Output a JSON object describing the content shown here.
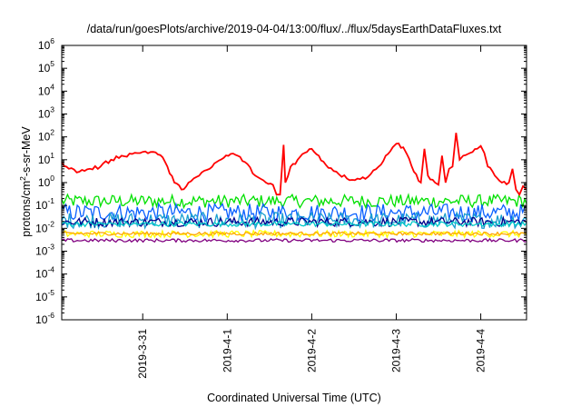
{
  "chart_data": {
    "type": "line",
    "title": "/data/run/goesPlots/archive/2019-04-04/13:00/flux/../flux/5daysEarthDataFluxes.txt",
    "xlabel": "Coordinated Universal Time (UTC)",
    "ylabel": {
      "base": "protons/cm",
      "sup": "2",
      "rest": "-s-sr-MeV"
    },
    "x_scale": "date",
    "y_scale": "log",
    "xlim": [
      "2019-03-30T01:00",
      "2019-04-04T13:00"
    ],
    "ylim": [
      1e-06,
      1000000.0
    ],
    "x_ticks": [
      "2019-3-31",
      "2019-4-1",
      "2019-4-2",
      "2019-4-3",
      "2019-4-4"
    ],
    "y_ticks": [
      {
        "base": "10",
        "exp": "-6"
      },
      {
        "base": "10",
        "exp": "-5"
      },
      {
        "base": "10",
        "exp": "-4"
      },
      {
        "base": "10",
        "exp": "-3"
      },
      {
        "base": "10",
        "exp": "-2"
      },
      {
        "base": "10",
        "exp": "-1"
      },
      {
        "base": "10",
        "exp": "0"
      },
      {
        "base": "10",
        "exp": "1"
      },
      {
        "base": "10",
        "exp": "2"
      },
      {
        "base": "10",
        "exp": "3"
      },
      {
        "base": "10",
        "exp": "4"
      },
      {
        "base": "10",
        "exp": "5"
      },
      {
        "base": "10",
        "exp": "6"
      }
    ],
    "grid": false,
    "legend": "none",
    "series": [
      {
        "color": "#ff0000",
        "points": [
          [
            "2019-03-30T01:00",
            8
          ],
          [
            "2019-03-30T03:00",
            4
          ],
          [
            "2019-03-30T06:00",
            3
          ],
          [
            "2019-03-30T09:00",
            4
          ],
          [
            "2019-03-30T12:00",
            5
          ],
          [
            "2019-03-30T15:00",
            10
          ],
          [
            "2019-03-30T18:00",
            15
          ],
          [
            "2019-03-30T21:00",
            18
          ],
          [
            "2019-03-31T00:00",
            22
          ],
          [
            "2019-03-31T03:00",
            22
          ],
          [
            "2019-03-31T05:00",
            16
          ],
          [
            "2019-03-31T07:00",
            5
          ],
          [
            "2019-03-31T09:00",
            1
          ],
          [
            "2019-03-31T11:00",
            0.5
          ],
          [
            "2019-03-31T13:00",
            1
          ],
          [
            "2019-03-31T16:00",
            2
          ],
          [
            "2019-03-31T19:00",
            4
          ],
          [
            "2019-03-31T21:00",
            8
          ],
          [
            "2019-03-31T23:00",
            12
          ],
          [
            "2019-04-01T01:00",
            18
          ],
          [
            "2019-04-01T03:00",
            15
          ],
          [
            "2019-04-01T05:00",
            8
          ],
          [
            "2019-04-01T08:00",
            2
          ],
          [
            "2019-04-01T11:00",
            1
          ],
          [
            "2019-04-01T13:00",
            0.8
          ],
          [
            "2019-04-01T14:00",
            0.3
          ],
          [
            "2019-04-01T15:00",
            0.3
          ],
          [
            "2019-04-01T16:00",
            45
          ],
          [
            "2019-04-01T16:30",
            1
          ],
          [
            "2019-04-01T18:00",
            5
          ],
          [
            "2019-04-01T20:00",
            10
          ],
          [
            "2019-04-01T22:00",
            20
          ],
          [
            "2019-04-02T00:00",
            30
          ],
          [
            "2019-04-02T02:00",
            15
          ],
          [
            "2019-04-02T04:00",
            6
          ],
          [
            "2019-04-02T07:00",
            3
          ],
          [
            "2019-04-02T10:00",
            1.5
          ],
          [
            "2019-04-02T13:00",
            1.5
          ],
          [
            "2019-04-02T16:00",
            1.8
          ],
          [
            "2019-04-02T19:00",
            5
          ],
          [
            "2019-04-02T21:00",
            15
          ],
          [
            "2019-04-02T23:00",
            35
          ],
          [
            "2019-04-03T00:00",
            50
          ],
          [
            "2019-04-03T02:00",
            35
          ],
          [
            "2019-04-03T03:00",
            18
          ],
          [
            "2019-04-03T05:00",
            3
          ],
          [
            "2019-04-03T07:00",
            1
          ],
          [
            "2019-04-03T08:00",
            30
          ],
          [
            "2019-04-03T09:00",
            2
          ],
          [
            "2019-04-03T11:00",
            1
          ],
          [
            "2019-04-03T12:00",
            0.8
          ],
          [
            "2019-04-03T13:00",
            15
          ],
          [
            "2019-04-03T14:00",
            1
          ],
          [
            "2019-04-03T15:00",
            4
          ],
          [
            "2019-04-03T16:00",
            5
          ],
          [
            "2019-04-03T17:00",
            150
          ],
          [
            "2019-04-03T18:00",
            10
          ],
          [
            "2019-04-03T19:00",
            15
          ],
          [
            "2019-04-03T21:00",
            20
          ],
          [
            "2019-04-03T23:00",
            30
          ],
          [
            "2019-04-04T00:00",
            40
          ],
          [
            "2019-04-04T01:00",
            20
          ],
          [
            "2019-04-04T02:00",
            5
          ],
          [
            "2019-04-04T04:00",
            2
          ],
          [
            "2019-04-04T06:00",
            1
          ],
          [
            "2019-04-04T08:00",
            1
          ],
          [
            "2019-04-04T09:00",
            4
          ],
          [
            "2019-04-04T10:00",
            0.5
          ],
          [
            "2019-04-04T11:00",
            0.3
          ],
          [
            "2019-04-04T12:00",
            0.7
          ],
          [
            "2019-04-04T13:00",
            0.5
          ]
        ]
      },
      {
        "color": "#00e000",
        "band": [
          0.08,
          0.3
        ]
      },
      {
        "color": "#0a60ff",
        "band": [
          0.02,
          0.12
        ]
      },
      {
        "color": "#1a9fd0",
        "band": [
          0.01,
          0.05
        ]
      },
      {
        "color": "#00008b",
        "band": [
          0.012,
          0.03
        ]
      },
      {
        "color": "#00c8c8",
        "band": [
          0.012,
          0.02
        ]
      },
      {
        "color": "#ffff00",
        "band": [
          0.004,
          0.008
        ]
      },
      {
        "color": "#ffa500",
        "band": [
          0.005,
          0.007
        ]
      },
      {
        "color": "#800080",
        "band": [
          0.0025,
          0.0035
        ]
      }
    ]
  }
}
